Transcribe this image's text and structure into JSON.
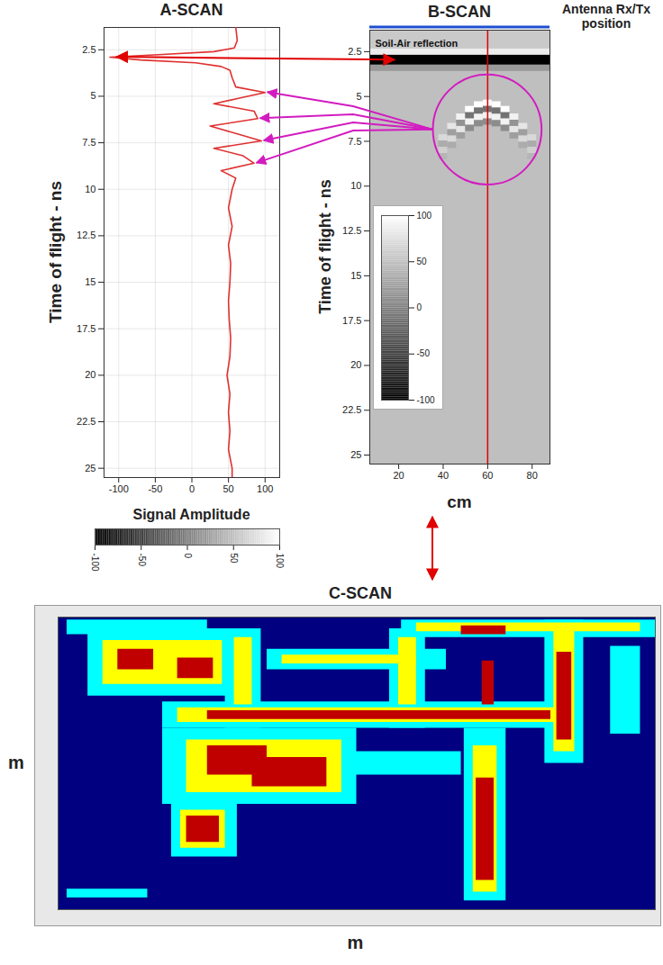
{
  "chart_data": [
    {
      "type": "line",
      "title": "A-SCAN",
      "xlabel": "Signal Amplitude",
      "ylabel": "Time of flight - ns",
      "color": "#e03030",
      "grid": true,
      "y": [
        1.3,
        2.0,
        2.4,
        2.6,
        2.75,
        2.9,
        3.05,
        3.2,
        3.4,
        3.6,
        4.0,
        4.5,
        4.8,
        5.1,
        5.4,
        5.8,
        6.2,
        6.6,
        7.0,
        7.4,
        7.8,
        8.2,
        8.6,
        9.0,
        9.4,
        10.0,
        11.0,
        12.0,
        13.0,
        14.0,
        15.0,
        16.0,
        17.0,
        18.0,
        19.0,
        20.0,
        21.0,
        22.0,
        23.0,
        24.0,
        25.0,
        25.5
      ],
      "x": [
        60,
        62,
        58,
        30,
        -40,
        -112,
        -70,
        5,
        40,
        52,
        55,
        60,
        100,
        65,
        30,
        85,
        90,
        25,
        60,
        95,
        30,
        70,
        85,
        40,
        60,
        55,
        50,
        55,
        50,
        53,
        52,
        50,
        51,
        53,
        52,
        48,
        52,
        50,
        52,
        50,
        55,
        55
      ],
      "xlim": [
        -120,
        120
      ],
      "xticks": [
        -100,
        -50,
        0,
        50,
        100
      ],
      "ylim": [
        1.3,
        25.5
      ],
      "yticks": [
        2.5,
        5,
        7.5,
        10,
        12.5,
        15,
        17.5,
        20,
        22.5,
        25
      ],
      "colorbar": {
        "range": [
          -100,
          100
        ],
        "ticks": [
          -100,
          -50,
          0,
          50,
          100
        ]
      }
    },
    {
      "type": "heatmap",
      "title": "B-SCAN",
      "xlabel": "cm",
      "ylabel": "Time of flight - ns",
      "annotations": [
        "Soil-Air reflection",
        "Antenna Rx/Tx position"
      ],
      "xlim": [
        7,
        88
      ],
      "xticks": [
        20,
        40,
        60,
        80
      ],
      "ylim": [
        1.3,
        25.5
      ],
      "yticks": [
        2.5,
        5,
        7.5,
        10,
        12.5,
        15,
        17.5,
        20,
        22.5,
        25
      ],
      "ascan_position": 60,
      "colorbar": {
        "range": [
          -100,
          100
        ],
        "ticks": [
          100,
          50,
          0,
          -50,
          -100
        ]
      },
      "cells": [
        {
          "x1": 7,
          "x2": 88,
          "t1": 1.3,
          "t2": 25.5,
          "v": 50
        },
        {
          "x1": 7,
          "x2": 88,
          "t1": 1.3,
          "t2": 2.35,
          "v": 58
        },
        {
          "x1": 7,
          "x2": 88,
          "t1": 2.35,
          "t2": 2.7,
          "v": 85
        },
        {
          "x1": 7,
          "x2": 88,
          "t1": 2.7,
          "t2": 3.25,
          "v": -100
        },
        {
          "x1": 7,
          "x2": 88,
          "t1": 3.25,
          "t2": 3.6,
          "v": 20
        },
        {
          "x1": 58,
          "x2": 62,
          "t1": 5.2,
          "t2": 5.55,
          "v": 100
        },
        {
          "x1": 58,
          "x2": 62,
          "t1": 5.55,
          "t2": 5.9,
          "v": -10
        },
        {
          "x1": 58,
          "x2": 62,
          "t1": 5.9,
          "t2": 6.25,
          "v": 90
        },
        {
          "x1": 58,
          "x2": 62,
          "t1": 6.25,
          "t2": 6.6,
          "v": 10
        },
        {
          "x1": 54,
          "x2": 58,
          "t1": 5.29,
          "t2": 5.64,
          "v": 100
        },
        {
          "x1": 54,
          "x2": 58,
          "t1": 5.64,
          "t2": 5.99,
          "v": -10
        },
        {
          "x1": 54,
          "x2": 58,
          "t1": 5.99,
          "t2": 6.34,
          "v": 90
        },
        {
          "x1": 54,
          "x2": 58,
          "t1": 6.34,
          "t2": 6.69,
          "v": 10
        },
        {
          "x1": 62,
          "x2": 66,
          "t1": 5.29,
          "t2": 5.64,
          "v": 100
        },
        {
          "x1": 62,
          "x2": 66,
          "t1": 5.64,
          "t2": 5.99,
          "v": -10
        },
        {
          "x1": 62,
          "x2": 66,
          "t1": 5.99,
          "t2": 6.34,
          "v": 90
        },
        {
          "x1": 62,
          "x2": 66,
          "t1": 6.34,
          "t2": 6.69,
          "v": 10
        },
        {
          "x1": 50,
          "x2": 54,
          "t1": 5.55,
          "t2": 5.9,
          "v": 100
        },
        {
          "x1": 50,
          "x2": 54,
          "t1": 5.9,
          "t2": 6.25,
          "v": -10
        },
        {
          "x1": 50,
          "x2": 54,
          "t1": 6.25,
          "t2": 6.6,
          "v": 90
        },
        {
          "x1": 50,
          "x2": 54,
          "t1": 6.6,
          "t2": 6.95,
          "v": 10
        },
        {
          "x1": 66,
          "x2": 70,
          "t1": 5.55,
          "t2": 5.9,
          "v": 100
        },
        {
          "x1": 66,
          "x2": 70,
          "t1": 5.9,
          "t2": 6.25,
          "v": -10
        },
        {
          "x1": 66,
          "x2": 70,
          "t1": 6.25,
          "t2": 6.6,
          "v": 90
        },
        {
          "x1": 66,
          "x2": 70,
          "t1": 6.6,
          "t2": 6.95,
          "v": 10
        },
        {
          "x1": 46,
          "x2": 50,
          "t1": 5.97,
          "t2": 6.32,
          "v": 90
        },
        {
          "x1": 46,
          "x2": 50,
          "t1": 6.32,
          "t2": 6.67,
          "v": 15
        },
        {
          "x1": 46,
          "x2": 50,
          "t1": 6.67,
          "t2": 7.02,
          "v": 80
        },
        {
          "x1": 46,
          "x2": 50,
          "t1": 7.02,
          "t2": 7.37,
          "v": 25
        },
        {
          "x1": 70,
          "x2": 74,
          "t1": 5.97,
          "t2": 6.32,
          "v": 90
        },
        {
          "x1": 70,
          "x2": 74,
          "t1": 6.32,
          "t2": 6.67,
          "v": 15
        },
        {
          "x1": 70,
          "x2": 74,
          "t1": 6.67,
          "t2": 7.02,
          "v": 80
        },
        {
          "x1": 70,
          "x2": 74,
          "t1": 7.02,
          "t2": 7.37,
          "v": 25
        },
        {
          "x1": 42,
          "x2": 46,
          "t1": 6.5,
          "t2": 6.85,
          "v": 80
        },
        {
          "x1": 42,
          "x2": 46,
          "t1": 6.85,
          "t2": 7.2,
          "v": 25
        },
        {
          "x1": 42,
          "x2": 46,
          "t1": 7.2,
          "t2": 7.55,
          "v": 70
        },
        {
          "x1": 42,
          "x2": 46,
          "t1": 7.55,
          "t2": 7.9,
          "v": 35
        },
        {
          "x1": 74,
          "x2": 78,
          "t1": 6.5,
          "t2": 6.85,
          "v": 80
        },
        {
          "x1": 74,
          "x2": 78,
          "t1": 6.85,
          "t2": 7.2,
          "v": 25
        },
        {
          "x1": 74,
          "x2": 78,
          "t1": 7.2,
          "t2": 7.55,
          "v": 70
        },
        {
          "x1": 74,
          "x2": 78,
          "t1": 7.55,
          "t2": 7.9,
          "v": 35
        },
        {
          "x1": 38,
          "x2": 42,
          "t1": 7.13,
          "t2": 7.48,
          "v": 70
        },
        {
          "x1": 38,
          "x2": 42,
          "t1": 7.48,
          "t2": 7.83,
          "v": 35
        },
        {
          "x1": 38,
          "x2": 42,
          "t1": 7.83,
          "t2": 8.18,
          "v": 62
        },
        {
          "x1": 38,
          "x2": 42,
          "t1": 8.18,
          "t2": 8.53,
          "v": 42
        },
        {
          "x1": 78,
          "x2": 82,
          "t1": 7.13,
          "t2": 7.48,
          "v": 70
        },
        {
          "x1": 78,
          "x2": 82,
          "t1": 7.48,
          "t2": 7.83,
          "v": 35
        },
        {
          "x1": 78,
          "x2": 82,
          "t1": 7.83,
          "t2": 8.18,
          "v": 62
        },
        {
          "x1": 78,
          "x2": 82,
          "t1": 8.18,
          "t2": 8.53,
          "v": 42
        }
      ]
    },
    {
      "type": "heatmap",
      "title": "C-SCAN",
      "xlabel": "m",
      "ylabel": "m",
      "xlim": [
        0,
        20
      ],
      "ylim": [
        0,
        10
      ],
      "tick_labels": false,
      "cells": [
        {
          "x1": 0,
          "x2": 20,
          "y1": 0,
          "y2": 10,
          "v": 0
        },
        {
          "x1": 1,
          "x2": 6.5,
          "y1": 7.3,
          "y2": 9.6,
          "v": 40
        },
        {
          "x1": 0.3,
          "x2": 5,
          "y1": 9.4,
          "y2": 9.9,
          "v": 40
        },
        {
          "x1": 11.5,
          "x2": 20,
          "y1": 9.3,
          "y2": 9.9,
          "v": 40
        },
        {
          "x1": 3.5,
          "x2": 17.5,
          "y1": 6.2,
          "y2": 7.1,
          "v": 40
        },
        {
          "x1": 3.5,
          "x2": 10,
          "y1": 3.6,
          "y2": 6.2,
          "v": 40
        },
        {
          "x1": 3.8,
          "x2": 6,
          "y1": 1.8,
          "y2": 3.8,
          "v": 40
        },
        {
          "x1": 13.6,
          "x2": 15,
          "y1": 0.3,
          "y2": 6.2,
          "v": 40
        },
        {
          "x1": 16.3,
          "x2": 17.6,
          "y1": 5,
          "y2": 9.9,
          "v": 40
        },
        {
          "x1": 5.6,
          "x2": 6.8,
          "y1": 6.2,
          "y2": 9.6,
          "v": 40
        },
        {
          "x1": 11.1,
          "x2": 12.3,
          "y1": 6.2,
          "y2": 9.6,
          "v": 40
        },
        {
          "x1": 7,
          "x2": 13,
          "y1": 8.2,
          "y2": 8.9,
          "v": 40
        },
        {
          "x1": 8.5,
          "x2": 13.5,
          "y1": 4.6,
          "y2": 5.4,
          "v": 40
        },
        {
          "x1": 18.5,
          "x2": 19.5,
          "y1": 6,
          "y2": 9,
          "v": 40
        },
        {
          "x1": 0.3,
          "x2": 3,
          "y1": 0.4,
          "y2": 0.7,
          "v": 40
        },
        {
          "x1": 1.5,
          "x2": 5.5,
          "y1": 7.7,
          "y2": 9.2,
          "v": 60
        },
        {
          "x1": 4,
          "x2": 17,
          "y1": 6.4,
          "y2": 6.9,
          "v": 60
        },
        {
          "x1": 4.3,
          "x2": 9.5,
          "y1": 4,
          "y2": 5.8,
          "v": 60
        },
        {
          "x1": 4.1,
          "x2": 5.6,
          "y1": 2.1,
          "y2": 3.4,
          "v": 60
        },
        {
          "x1": 13.9,
          "x2": 14.7,
          "y1": 0.6,
          "y2": 5.6,
          "v": 60
        },
        {
          "x1": 16.6,
          "x2": 17.3,
          "y1": 5.4,
          "y2": 9.6,
          "v": 60
        },
        {
          "x1": 5.9,
          "x2": 6.5,
          "y1": 7,
          "y2": 9.3,
          "v": 60
        },
        {
          "x1": 11.4,
          "x2": 12,
          "y1": 7,
          "y2": 9.3,
          "v": 60
        },
        {
          "x1": 12,
          "x2": 19.5,
          "y1": 9.5,
          "y2": 9.8,
          "v": 60
        },
        {
          "x1": 7.5,
          "x2": 12,
          "y1": 8.4,
          "y2": 8.7,
          "v": 60
        },
        {
          "x1": 2,
          "x2": 3.2,
          "y1": 8.2,
          "y2": 8.9,
          "v": 100
        },
        {
          "x1": 4,
          "x2": 5.2,
          "y1": 7.9,
          "y2": 8.6,
          "v": 100
        },
        {
          "x1": 5,
          "x2": 16.5,
          "y1": 6.5,
          "y2": 6.8,
          "v": 100
        },
        {
          "x1": 5,
          "x2": 7,
          "y1": 4.6,
          "y2": 5.6,
          "v": 100
        },
        {
          "x1": 6.5,
          "x2": 9,
          "y1": 4.2,
          "y2": 5.2,
          "v": 100
        },
        {
          "x1": 4.3,
          "x2": 5.4,
          "y1": 2.3,
          "y2": 3.2,
          "v": 100
        },
        {
          "x1": 14,
          "x2": 14.6,
          "y1": 1,
          "y2": 4.5,
          "v": 100
        },
        {
          "x1": 16.7,
          "x2": 17.2,
          "y1": 5.8,
          "y2": 8.8,
          "v": 100
        },
        {
          "x1": 14.2,
          "x2": 14.6,
          "y1": 7,
          "y2": 8.5,
          "v": 100
        },
        {
          "x1": 13.5,
          "x2": 15,
          "y1": 9.4,
          "y2": 9.7,
          "v": 100
        }
      ]
    }
  ]
}
